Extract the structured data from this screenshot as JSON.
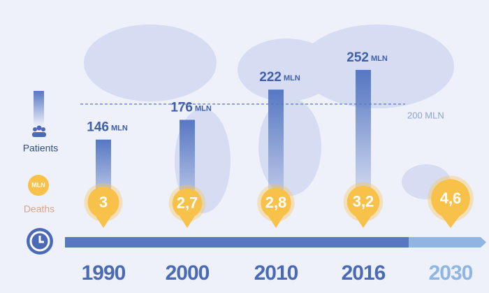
{
  "chart_data": {
    "type": "bar",
    "categories": [
      "1990",
      "2000",
      "2010",
      "2016",
      "2030"
    ],
    "unit": "MLN",
    "series": [
      {
        "name": "Patients",
        "color": "#5677c2",
        "values": [
          146,
          176,
          222,
          252,
          null
        ]
      },
      {
        "name": "Deaths",
        "color": "#f8c24a",
        "values": [
          3,
          2.7,
          2.8,
          3.2,
          4.6
        ],
        "value_labels": [
          "3",
          "2,7",
          "2,8",
          "3,2",
          "4,6"
        ]
      }
    ],
    "reference_line": {
      "value": 200,
      "label": "200 MLN"
    },
    "ylim": [
      0,
      270
    ]
  }
}
